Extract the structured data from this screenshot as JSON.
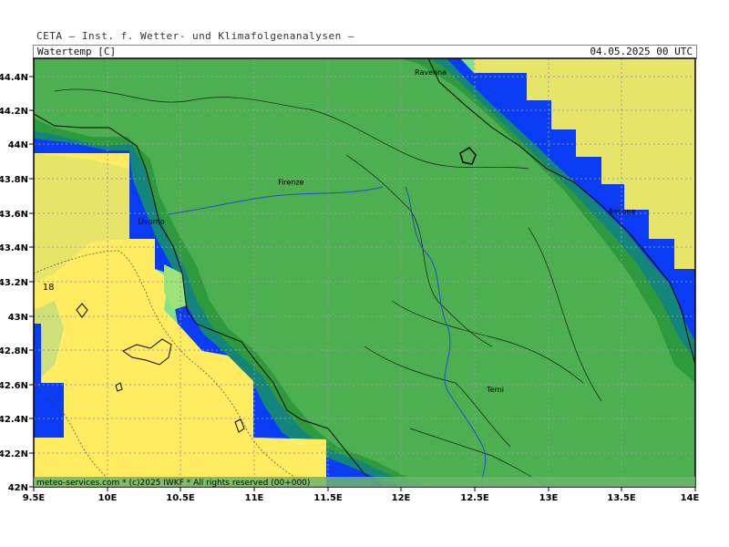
{
  "header": {
    "title": "CETA — Inst. f. Wetter- und Klimafolgenanalysen —",
    "variable": "Watertemp [C]",
    "datetime": "04.05.2025 00 UTC"
  },
  "axes": {
    "lat_ticks": [
      "44.4N",
      "44.2N",
      "44N",
      "43.8N",
      "43.6N",
      "43.4N",
      "43.2N",
      "43N",
      "42.8N",
      "42.6N",
      "42.4N",
      "42.2N",
      "42N"
    ],
    "lon_ticks": [
      "9.5E",
      "10E",
      "10.5E",
      "11E",
      "11.5E",
      "12E",
      "12.5E",
      "13E",
      "13.5E",
      "14E"
    ]
  },
  "cities": [
    {
      "name": "Ravenna",
      "lon": 12.2,
      "lat": 44.42
    },
    {
      "name": "Firenze",
      "lon": 11.25,
      "lat": 43.78
    },
    {
      "name": "Livorno",
      "lon": 10.3,
      "lat": 43.55
    },
    {
      "name": "Ancona",
      "lon": 13.5,
      "lat": 43.61
    },
    {
      "name": "Terni",
      "lon": 12.64,
      "lat": 42.57
    }
  ],
  "contour_labels": [
    {
      "text": "18",
      "lon": 9.6,
      "lat": 43.17
    }
  ],
  "colors": {
    "land": "#4caf50",
    "warm_sea": "#ffec60",
    "warm_sea_2": "#e6e56a",
    "coast_dark": "#2d9a3e",
    "coast_teal": "#14857a",
    "coast_blue": "#0a3cf5",
    "coast_cyan": "#7ae58a"
  },
  "footer": "meteo-services.com * (c)2025 IWKF * All rights reserved (00+000)"
}
